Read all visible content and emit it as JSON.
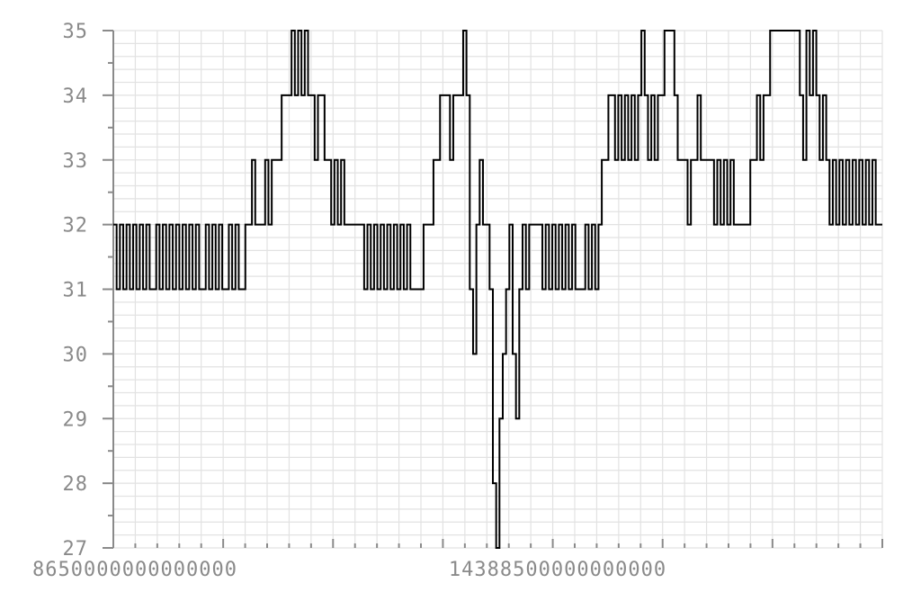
{
  "chart_data": {
    "type": "line",
    "title": "",
    "xlabel": "",
    "ylabel": "",
    "ylim": [
      27,
      35
    ],
    "grid": true,
    "y_ticks": [
      "27",
      "28",
      "29",
      "30",
      "31",
      "32",
      "33",
      "34",
      "35"
    ],
    "x_tick_labels": [
      "8650000000000000",
      "14388500000000000"
    ],
    "series": [
      {
        "step": true,
        "values": [
          32,
          31,
          32,
          31,
          32,
          31,
          32,
          31,
          32,
          31,
          32,
          31,
          31,
          32,
          31,
          32,
          31,
          32,
          31,
          32,
          31,
          32,
          31,
          32,
          31,
          32,
          31,
          31,
          32,
          31,
          32,
          31,
          32,
          31,
          31,
          32,
          31,
          32,
          31,
          31,
          32,
          32,
          33,
          32,
          32,
          32,
          33,
          32,
          33,
          33,
          33,
          34,
          34,
          34,
          35,
          34,
          35,
          34,
          35,
          34,
          34,
          33,
          34,
          34,
          33,
          33,
          32,
          33,
          32,
          33,
          32,
          32,
          32,
          32,
          32,
          32,
          31,
          32,
          31,
          32,
          31,
          32,
          31,
          32,
          31,
          32,
          31,
          32,
          31,
          32,
          31,
          31,
          31,
          31,
          32,
          32,
          32,
          33,
          33,
          34,
          34,
          34,
          33,
          34,
          34,
          34,
          35,
          34,
          31,
          30,
          32,
          33,
          32,
          32,
          31,
          28,
          27,
          29,
          30,
          31,
          32,
          30,
          29,
          31,
          32,
          31,
          32,
          32,
          32,
          32,
          31,
          32,
          31,
          32,
          31,
          32,
          31,
          32,
          31,
          32,
          31,
          31,
          31,
          32,
          31,
          32,
          31,
          32,
          33,
          33,
          34,
          34,
          33,
          34,
          33,
          34,
          33,
          34,
          33,
          34,
          35,
          34,
          33,
          34,
          33,
          34,
          34,
          35,
          35,
          35,
          34,
          33,
          33,
          33,
          32,
          33,
          33,
          34,
          33,
          33,
          33,
          33,
          32,
          33,
          32,
          33,
          32,
          33,
          32,
          32,
          32,
          32,
          32,
          33,
          33,
          34,
          33,
          34,
          34,
          35,
          35,
          35,
          35,
          35,
          35,
          35,
          35,
          35,
          34,
          33,
          35,
          34,
          35,
          34,
          33,
          34,
          33,
          32,
          33,
          32,
          33,
          32,
          33,
          32,
          33,
          32,
          33,
          32,
          33,
          32,
          33,
          32,
          32,
          32
        ]
      }
    ],
    "colors": {
      "line": "#000000",
      "grid": "#e2e2e2",
      "axis": "#8a8a8a",
      "labels": "#8a8a8a"
    }
  }
}
